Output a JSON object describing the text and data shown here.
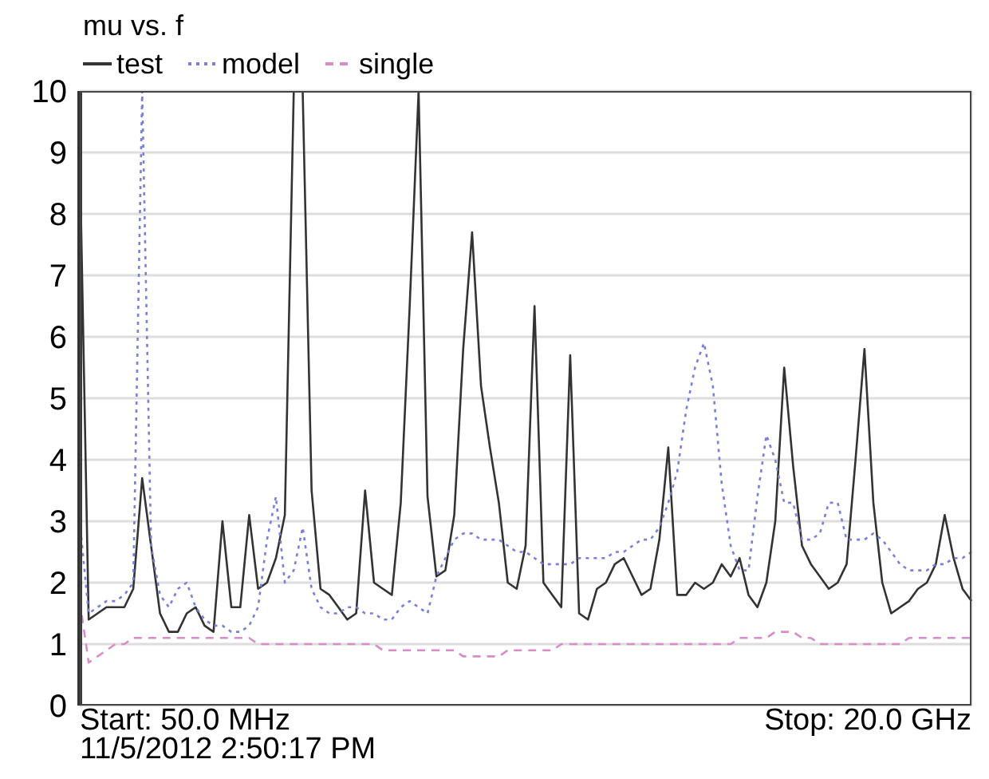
{
  "chart_data": {
    "type": "line",
    "title": "mu vs. f",
    "categories": [
      null,
      null,
      null,
      null,
      null,
      null,
      null,
      null,
      null,
      null,
      null,
      null,
      null,
      null,
      null,
      null,
      null,
      null,
      null,
      null,
      null,
      null,
      null,
      null,
      null,
      null,
      null,
      null,
      null,
      null,
      null,
      null,
      null,
      null,
      null,
      null,
      null,
      null,
      null,
      null,
      null,
      null,
      null,
      null,
      null,
      null,
      null,
      null,
      null,
      null,
      null,
      null,
      null,
      null,
      null,
      null,
      null,
      null,
      null,
      null,
      null,
      null,
      null,
      null,
      null,
      null,
      null,
      null,
      null,
      null,
      null,
      null,
      null,
      null,
      null,
      null,
      null,
      null,
      null,
      null,
      null,
      null,
      null,
      null,
      null,
      null,
      null,
      null,
      null,
      null,
      null,
      null,
      null,
      null,
      null,
      null,
      null,
      null,
      null,
      null,
      null
    ],
    "series": [
      {
        "name": "test",
        "color": "#333333",
        "line_style": "solid",
        "values": [
          9,
          1.4,
          1.5,
          1.6,
          1.6,
          1.6,
          1.9,
          3.7,
          2.6,
          1.5,
          1.2,
          1.2,
          1.5,
          1.6,
          1.3,
          1.2,
          3.0,
          1.6,
          1.6,
          3.1,
          1.9,
          2.0,
          2.4,
          3.1,
          10,
          10,
          3.5,
          1.9,
          1.8,
          1.6,
          1.4,
          1.5,
          3.5,
          2.0,
          1.9,
          1.8,
          3.3,
          6.5,
          10,
          3.4,
          2.1,
          2.2,
          3.1,
          5.8,
          7.7,
          5.2,
          4.2,
          3.3,
          2.0,
          1.9,
          2.6,
          6.5,
          2.0,
          1.8,
          1.6,
          5.7,
          1.5,
          1.4,
          1.9,
          2.0,
          2.3,
          2.4,
          2.1,
          1.8,
          1.9,
          2.7,
          4.2,
          1.8,
          1.8,
          2.0,
          1.9,
          2.0,
          2.3,
          2.1,
          2.4,
          1.8,
          1.6,
          2.0,
          3.0,
          5.5,
          3.9,
          2.6,
          2.3,
          2.1,
          1.9,
          2.0,
          2.3,
          4.0,
          5.8,
          3.3,
          2.0,
          1.5,
          1.6,
          1.7,
          1.9,
          2.0,
          2.3,
          3.1,
          2.4,
          1.9,
          1.7
        ]
      },
      {
        "name": "model",
        "color": "#7a7fd8",
        "line_style": "dotted",
        "values": [
          3.0,
          1.5,
          1.6,
          1.7,
          1.7,
          1.8,
          2.0,
          10,
          2.6,
          1.8,
          1.6,
          1.9,
          2.0,
          1.6,
          1.4,
          1.3,
          1.3,
          1.2,
          1.2,
          1.3,
          1.6,
          2.7,
          3.4,
          2.0,
          2.2,
          2.9,
          1.9,
          1.6,
          1.5,
          1.5,
          1.6,
          1.6,
          1.5,
          1.5,
          1.4,
          1.4,
          1.6,
          1.7,
          1.6,
          1.5,
          2.1,
          2.4,
          2.7,
          2.8,
          2.8,
          2.7,
          2.7,
          2.7,
          2.6,
          2.5,
          2.5,
          2.4,
          2.3,
          2.3,
          2.3,
          2.3,
          2.4,
          2.4,
          2.4,
          2.4,
          2.5,
          2.5,
          2.6,
          2.7,
          2.7,
          2.9,
          3.3,
          3.8,
          4.8,
          5.5,
          5.9,
          5.2,
          3.6,
          2.6,
          2.2,
          2.2,
          3.4,
          4.4,
          4.0,
          3.3,
          3.3,
          2.7,
          2.7,
          2.8,
          3.3,
          3.3,
          2.7,
          2.7,
          2.7,
          2.8,
          2.7,
          2.5,
          2.3,
          2.2,
          2.2,
          2.2,
          2.3,
          2.3,
          2.4,
          2.4,
          2.5
        ]
      },
      {
        "name": "single",
        "color": "#d98cc9",
        "line_style": "dashed",
        "values": [
          1.7,
          0.7,
          0.8,
          0.9,
          1.0,
          1.0,
          1.1,
          1.1,
          1.1,
          1.1,
          1.1,
          1.1,
          1.1,
          1.1,
          1.1,
          1.1,
          1.1,
          1.1,
          1.1,
          1.1,
          1.0,
          1.0,
          1.0,
          1.0,
          1.0,
          1.0,
          1.0,
          1.0,
          1.0,
          1.0,
          1.0,
          1.0,
          1.0,
          1.0,
          0.9,
          0.9,
          0.9,
          0.9,
          0.9,
          0.9,
          0.9,
          0.9,
          0.9,
          0.8,
          0.8,
          0.8,
          0.8,
          0.8,
          0.9,
          0.9,
          0.9,
          0.9,
          0.9,
          0.9,
          1.0,
          1.0,
          1.0,
          1.0,
          1.0,
          1.0,
          1.0,
          1.0,
          1.0,
          1.0,
          1.0,
          1.0,
          1.0,
          1.0,
          1.0,
          1.0,
          1.0,
          1.0,
          1.0,
          1.0,
          1.1,
          1.1,
          1.1,
          1.1,
          1.2,
          1.2,
          1.2,
          1.1,
          1.1,
          1.0,
          1.0,
          1.0,
          1.0,
          1.0,
          1.0,
          1.0,
          1.0,
          1.0,
          1.0,
          1.1,
          1.1,
          1.1,
          1.1,
          1.1,
          1.1,
          1.1,
          1.1
        ]
      }
    ],
    "ylim": [
      0,
      10
    ],
    "yticks": [
      0,
      1,
      2,
      3,
      4,
      5,
      6,
      7,
      8,
      9,
      10
    ],
    "grid": true,
    "legend": "top left",
    "tick_labels": "y",
    "annotations": [
      "Start: 50.0 MHz",
      "Stop: 20.0 GHz",
      "11/5/2012 2:50:17 PM"
    ]
  }
}
